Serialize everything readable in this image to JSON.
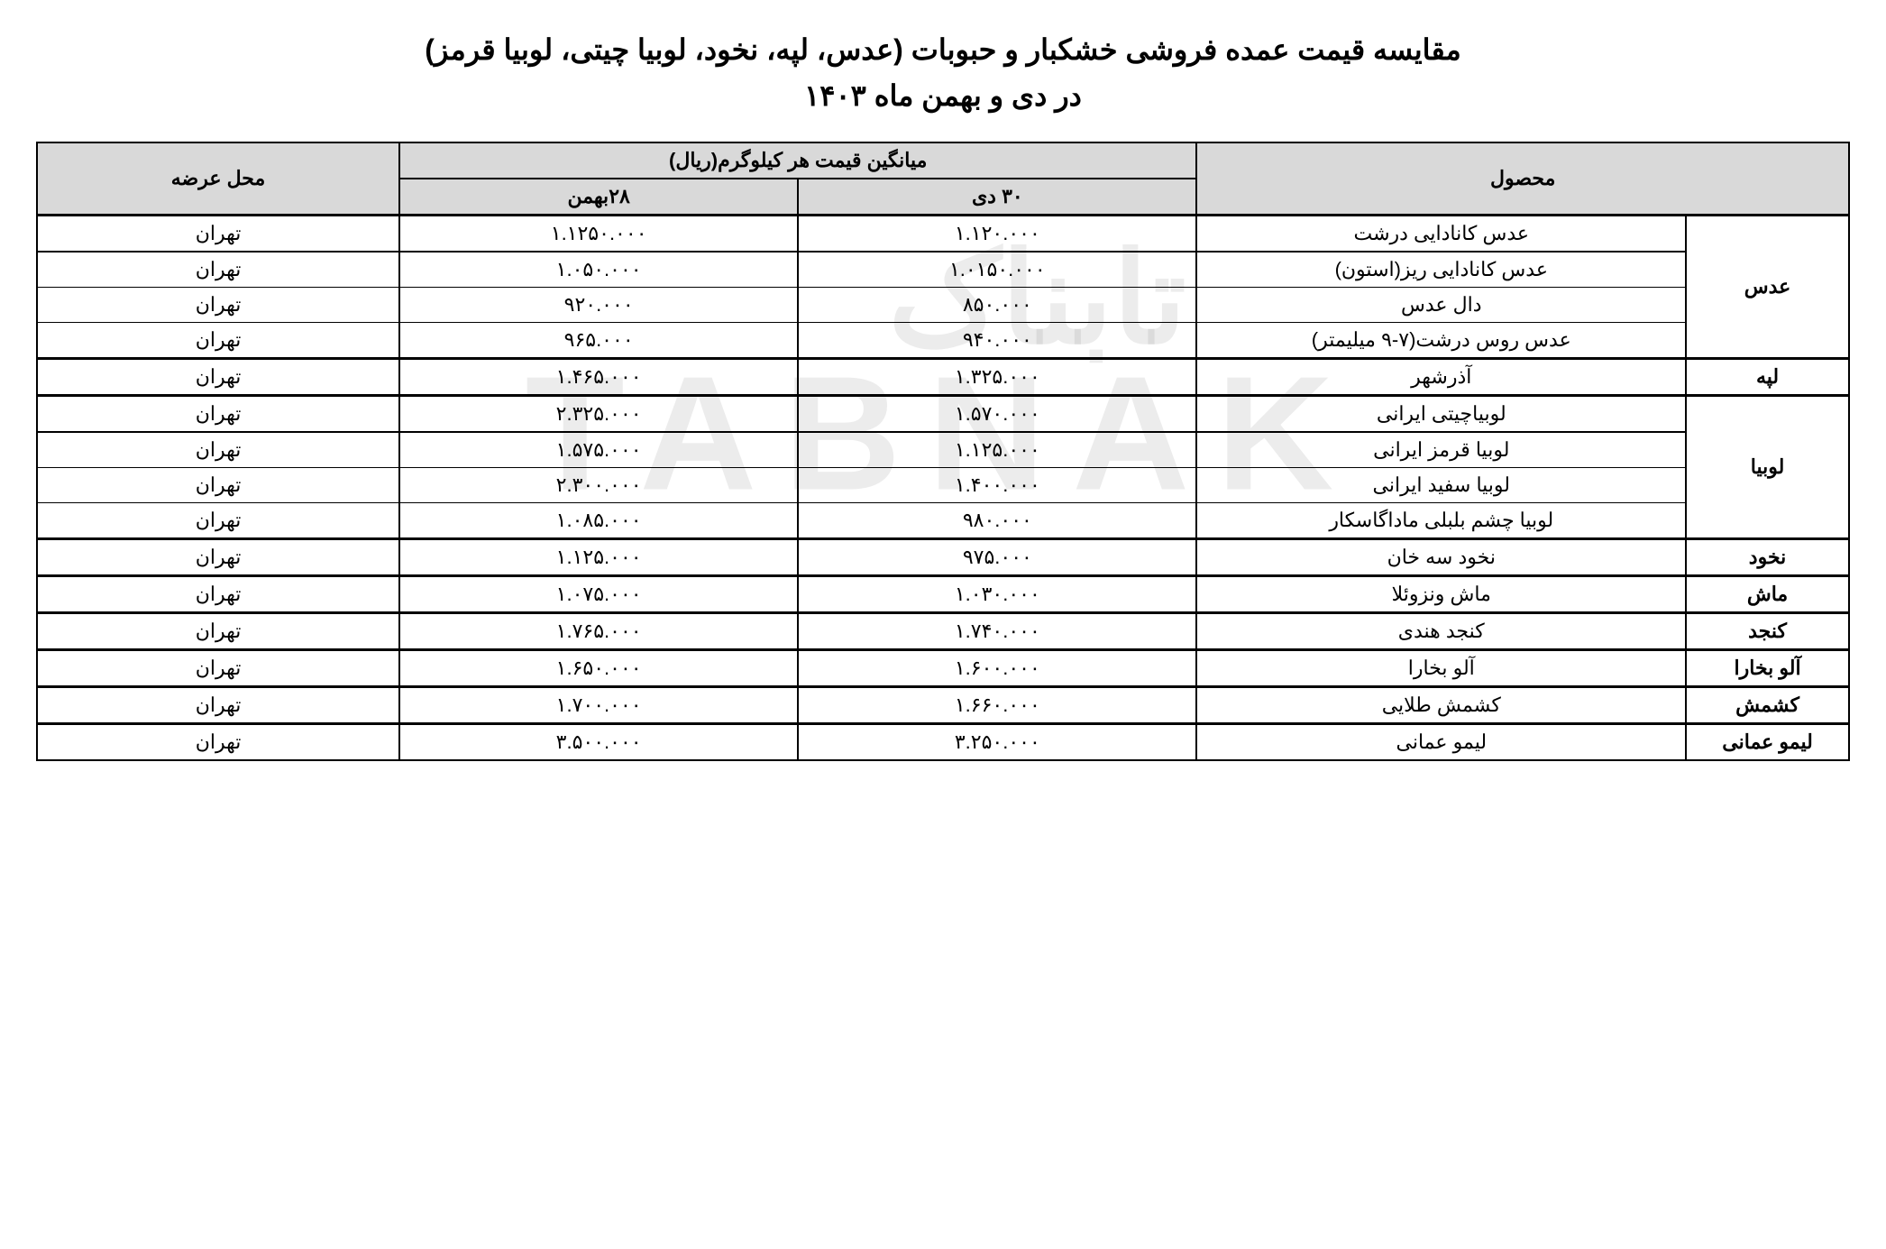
{
  "title": {
    "line1": "مقایسه قیمت عمده فروشی خشکبار و حبوبات (عدس، لپه، نخود، لوبیا چیتی، لوبیا قرمز)",
    "line2": "در دی و بهمن ماه ۱۴۰۳"
  },
  "headers": {
    "product": "محصول",
    "avg_price": "میانگین قیمت هر کیلوگرم(ریال)",
    "date1": "۳۰ دی",
    "date2": "۲۸بهمن",
    "location": "محل عرضه"
  },
  "watermark": {
    "latin": "TABNAK",
    "persian": "تابناک"
  },
  "groups": [
    {
      "category": "عدس",
      "rows": [
        {
          "product": "عدس کانادایی درشت",
          "price_dey": "۱.۱۲۰.۰۰۰",
          "price_bahman": "۱.۱۲۵۰.۰۰۰",
          "location": "تهران"
        },
        {
          "product": "عدس کانادایی ریز(استون)",
          "price_dey": "۱.۰۱۵۰.۰۰۰",
          "price_bahman": "۱.۰۵۰.۰۰۰",
          "location": "تهران"
        },
        {
          "product": "دال عدس",
          "price_dey": "۸۵۰.۰۰۰",
          "price_bahman": "۹۲۰.۰۰۰",
          "location": "تهران"
        },
        {
          "product": "عدس روس درشت(۷-۹ میلیمتر)",
          "price_dey": "۹۴۰.۰۰۰",
          "price_bahman": "۹۶۵.۰۰۰",
          "location": "تهران"
        }
      ]
    },
    {
      "category": "لپه",
      "rows": [
        {
          "product": "آذرشهر",
          "price_dey": "۱.۳۲۵.۰۰۰",
          "price_bahman": "۱.۴۶۵.۰۰۰",
          "location": "تهران"
        }
      ]
    },
    {
      "category": "لوبیا",
      "rows": [
        {
          "product": "لوبیاچیتی ایرانی",
          "price_dey": "۱.۵۷۰.۰۰۰",
          "price_bahman": "۲.۳۲۵.۰۰۰",
          "location": "تهران"
        },
        {
          "product": "لوبیا قرمز ایرانی",
          "price_dey": "۱.۱۲۵.۰۰۰",
          "price_bahman": "۱.۵۷۵.۰۰۰",
          "location": "تهران"
        },
        {
          "product": "لوبیا سفید ایرانی",
          "price_dey": "۱.۴۰۰.۰۰۰",
          "price_bahman": "۲.۳۰۰.۰۰۰",
          "location": "تهران"
        },
        {
          "product": "لوبیا چشم بلبلی ماداگاسکار",
          "price_dey": "۹۸۰.۰۰۰",
          "price_bahman": "۱.۰۸۵.۰۰۰",
          "location": "تهران"
        }
      ]
    },
    {
      "category": "نخود",
      "rows": [
        {
          "product": "نخود سه خان",
          "price_dey": "۹۷۵.۰۰۰",
          "price_bahman": "۱.۱۲۵.۰۰۰",
          "location": "تهران"
        }
      ]
    },
    {
      "category": "ماش",
      "rows": [
        {
          "product": "ماش ونزوئلا",
          "price_dey": "۱.۰۳۰.۰۰۰",
          "price_bahman": "۱.۰۷۵.۰۰۰",
          "location": "تهران"
        }
      ]
    },
    {
      "category": "کنجد",
      "rows": [
        {
          "product": "کنجد هندی",
          "price_dey": "۱.۷۴۰.۰۰۰",
          "price_bahman": "۱.۷۶۵.۰۰۰",
          "location": "تهران"
        }
      ]
    },
    {
      "category": "آلو بخارا",
      "rows": [
        {
          "product": "آلو بخارا",
          "price_dey": "۱.۶۰۰.۰۰۰",
          "price_bahman": "۱.۶۵۰.۰۰۰",
          "location": "تهران"
        }
      ]
    },
    {
      "category": "کشمش",
      "rows": [
        {
          "product": "کشمش طلایی",
          "price_dey": "۱.۶۶۰.۰۰۰",
          "price_bahman": "۱.۷۰۰.۰۰۰",
          "location": "تهران"
        }
      ]
    },
    {
      "category": "لیمو عمانی",
      "rows": [
        {
          "product": "لیمو عمانی",
          "price_dey": "۳.۲۵۰.۰۰۰",
          "price_bahman": "۳.۵۰۰.۰۰۰",
          "location": "تهران"
        }
      ]
    }
  ],
  "colors": {
    "header_bg": "#d9d9d9",
    "border": "#000000",
    "text": "#000000",
    "watermark_latin": "rgba(180,180,180,0.25)",
    "watermark_persian": "rgba(100,100,100,0.12)"
  }
}
